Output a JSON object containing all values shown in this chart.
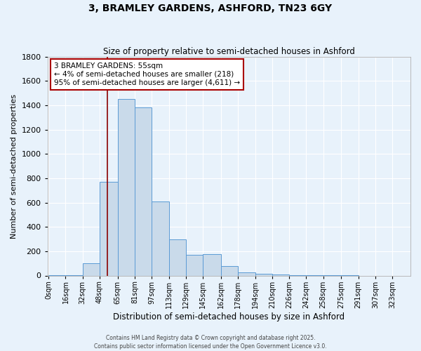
{
  "title1": "3, BRAMLEY GARDENS, ASHFORD, TN23 6GY",
  "title2": "Size of property relative to semi-detached houses in Ashford",
  "xlabel": "Distribution of semi-detached houses by size in Ashford",
  "ylabel": "Number of semi-detached properties",
  "bar_labels": [
    "0sqm",
    "16sqm",
    "32sqm",
    "48sqm",
    "65sqm",
    "81sqm",
    "97sqm",
    "113sqm",
    "129sqm",
    "145sqm",
    "162sqm",
    "178sqm",
    "194sqm",
    "210sqm",
    "226sqm",
    "242sqm",
    "258sqm",
    "275sqm",
    "291sqm",
    "307sqm",
    "323sqm"
  ],
  "bar_values": [
    5,
    5,
    100,
    770,
    1450,
    1380,
    610,
    300,
    170,
    175,
    80,
    25,
    15,
    8,
    3,
    2,
    1,
    1,
    0,
    0,
    0
  ],
  "bar_color": "#c9daea",
  "bar_edge_color": "#5b9bd5",
  "background_color": "#e8f2fb",
  "grid_color": "#ffffff",
  "vline_color": "#8b0000",
  "annotation_title": "3 BRAMLEY GARDENS: 55sqm",
  "annotation_line1": "← 4% of semi-detached houses are smaller (218)",
  "annotation_line2": "95% of semi-detached houses are larger (4,611) →",
  "annotation_box_color": "#ffffff",
  "annotation_box_edge": "#aa0000",
  "ylim": [
    0,
    1800
  ],
  "property_sqm": 55,
  "footer1": "Contains HM Land Registry data © Crown copyright and database right 2025.",
  "footer2": "Contains public sector information licensed under the Open Government Licence v3.0."
}
